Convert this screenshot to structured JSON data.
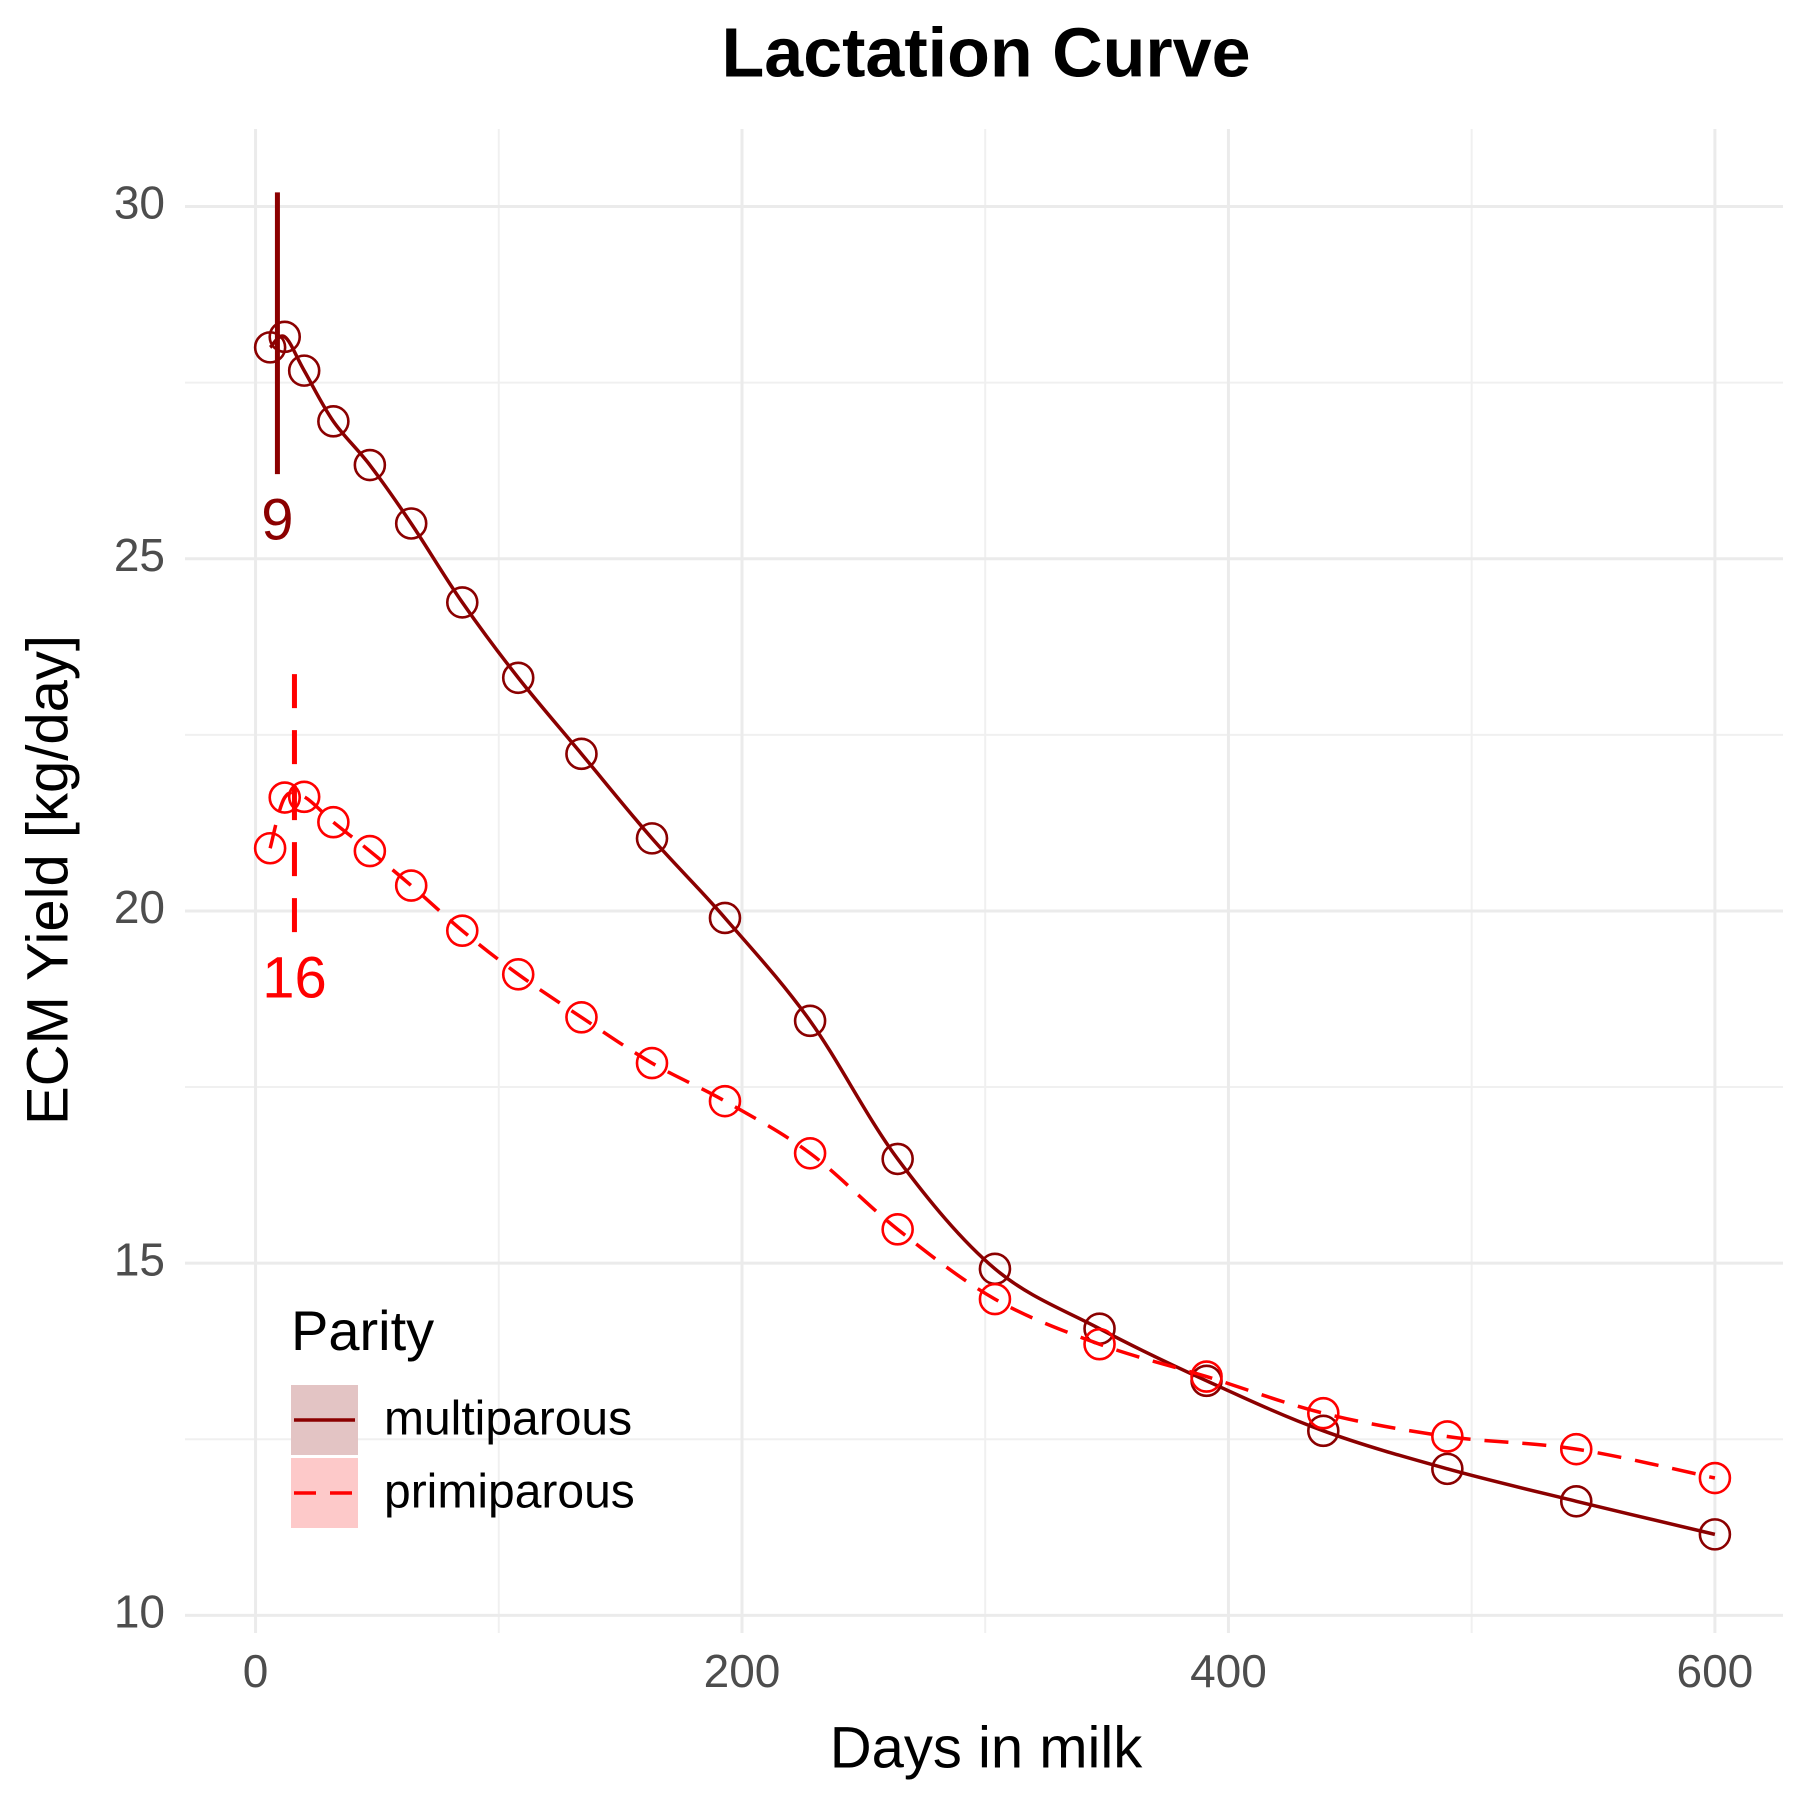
{
  "chart_data": {
    "type": "line",
    "title": "Lactation Curve",
    "x_label": "Days in milk",
    "y_label": "ECM Yield [kg/day]",
    "x": [
      6,
      12,
      20,
      32,
      47,
      64,
      85,
      108,
      134,
      163,
      193,
      228,
      264,
      304,
      347,
      391,
      439,
      490,
      543,
      600
    ],
    "series": [
      {
        "name": "multiparous",
        "color": "#8b0000",
        "ribbon_color": "#e3c4c4",
        "dash": "solid",
        "values": [
          28.0,
          28.15,
          27.67,
          26.95,
          26.33,
          25.5,
          24.38,
          23.31,
          22.23,
          21.03,
          19.9,
          18.44,
          16.48,
          14.92,
          14.07,
          13.33,
          12.62,
          12.08,
          11.62,
          11.15
        ]
      },
      {
        "name": "primiparous",
        "color": "#ff0000",
        "ribbon_color": "#fdc9c9",
        "dash": "dashed",
        "values": [
          20.89,
          21.61,
          21.62,
          21.26,
          20.85,
          20.36,
          19.72,
          19.1,
          18.49,
          17.84,
          17.3,
          16.56,
          15.48,
          14.49,
          13.85,
          13.39,
          12.87,
          12.54,
          12.36,
          11.95
        ]
      }
    ],
    "annotations": [
      {
        "x": 9,
        "y_start": 26.2,
        "y_end": 30.2,
        "color": "#8b0000",
        "dash": "solid"
      },
      {
        "x": 16,
        "y_start": 19.7,
        "y_end": 23.5,
        "color": "#ff0000",
        "dash": "dashed"
      }
    ],
    "legend_title": "Parity",
    "legend_position": "bottom-left",
    "xlim": [
      -29,
      628
    ],
    "ylim": [
      9.75,
      31.1
    ],
    "xticks": [
      0,
      200,
      400,
      600
    ],
    "yticks": [
      10,
      15,
      20,
      25,
      30
    ],
    "xminor": [
      100,
      300,
      500
    ],
    "yminor": [
      12.5,
      17.5,
      22.5,
      27.5
    ],
    "grid": true
  }
}
